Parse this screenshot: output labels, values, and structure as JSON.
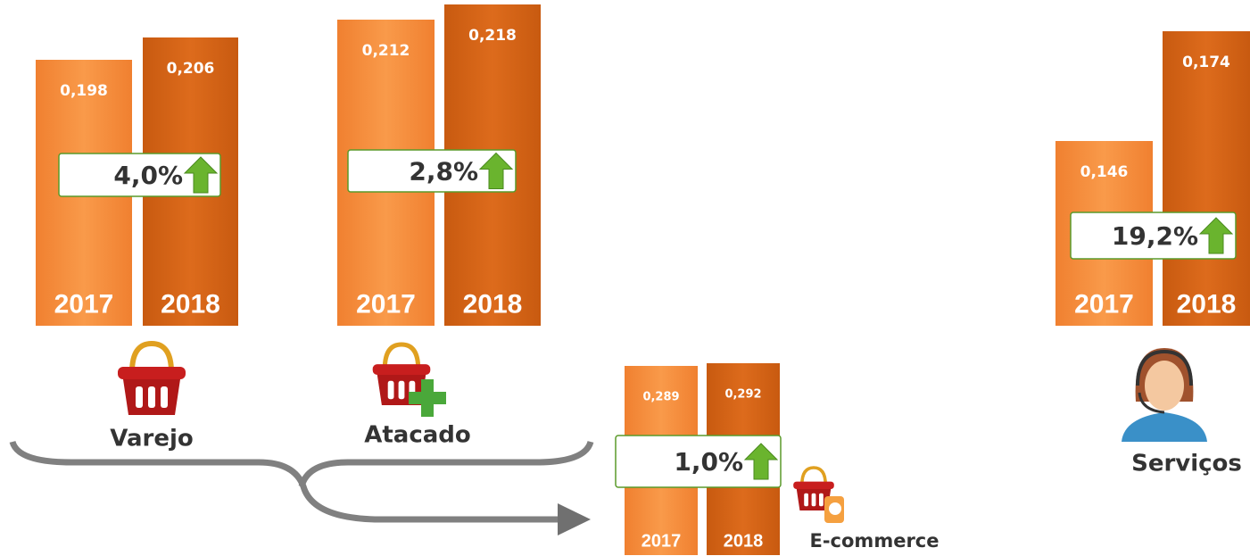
{
  "groups": [
    {
      "label": "Varejo",
      "change": "4,0%",
      "bars": [
        {
          "year": "2017",
          "value": "0,198"
        },
        {
          "year": "2018",
          "value": "0,206"
        }
      ]
    },
    {
      "label": "Atacado",
      "change": "2,8%",
      "bars": [
        {
          "year": "2017",
          "value": "0,212"
        },
        {
          "year": "2018",
          "value": "0,218"
        }
      ]
    },
    {
      "label": "E-commerce",
      "change": "1,0%",
      "bars": [
        {
          "year": "2017",
          "value": "0,289"
        },
        {
          "year": "2018",
          "value": "0,292"
        }
      ]
    },
    {
      "label": "Serviços",
      "change": "19,2%",
      "bars": [
        {
          "year": "2017",
          "value": "0,146"
        },
        {
          "year": "2018",
          "value": "0,174"
        }
      ]
    }
  ]
}
